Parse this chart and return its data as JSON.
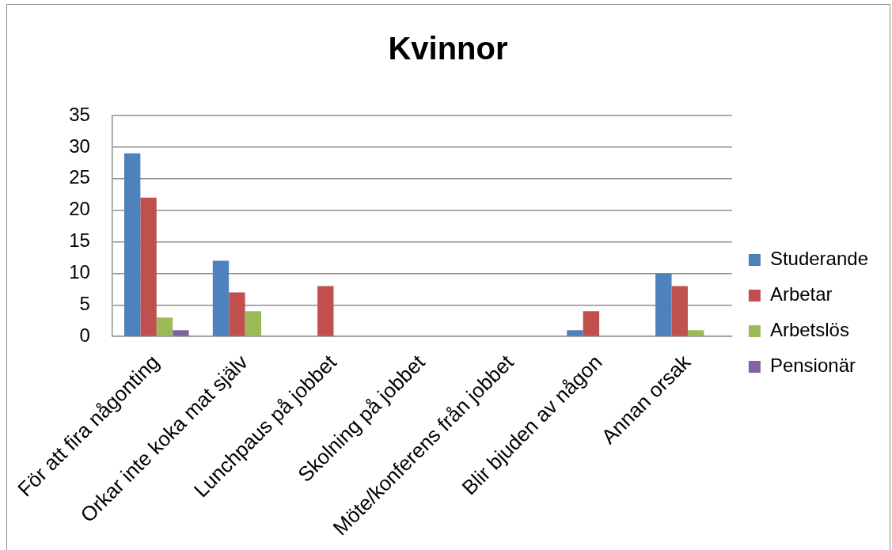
{
  "chart_data": {
    "type": "bar",
    "title": "Kvinnor",
    "categories": [
      "För att fira någonting",
      "Orkar inte koka mat själv",
      "Lunchpaus på jobbet",
      "Skolning på jobbet",
      "Möte/konferens från jobbet",
      "Blir bjuden av någon",
      "Annan orsak"
    ],
    "series": [
      {
        "name": "Studerande",
        "color": "#4f81bd",
        "values": [
          29,
          12,
          0,
          0,
          0,
          1,
          10
        ]
      },
      {
        "name": "Arbetar",
        "color": "#c0504d",
        "values": [
          22,
          7,
          8,
          0,
          0,
          4,
          8
        ]
      },
      {
        "name": "Arbetslös",
        "color": "#9bbb59",
        "values": [
          3,
          4,
          0,
          0,
          0,
          0,
          1
        ]
      },
      {
        "name": "Pensionär",
        "color": "#8064a2",
        "values": [
          1,
          0,
          0,
          0,
          0,
          0,
          0
        ]
      }
    ],
    "ylim": [
      0,
      35
    ],
    "yticks": [
      0,
      5,
      10,
      15,
      20,
      25,
      30,
      35
    ],
    "grid": "y",
    "legend": "right"
  }
}
